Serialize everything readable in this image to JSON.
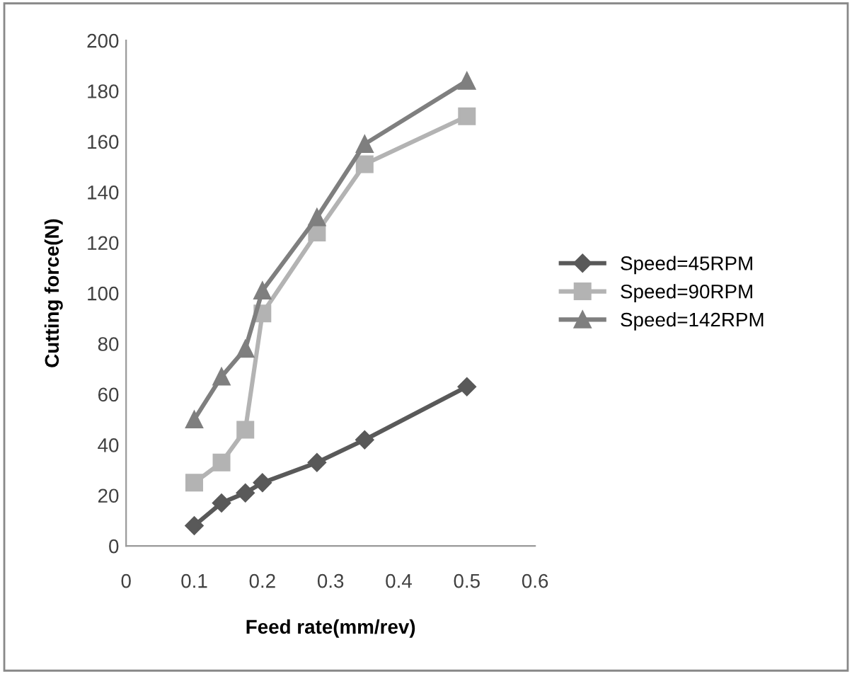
{
  "chart_data": {
    "type": "line",
    "xlabel": "Feed rate(mm/rev)",
    "ylabel": "Cutting force(N)",
    "x": [
      0.1,
      0.14,
      0.175,
      0.2,
      0.28,
      0.35,
      0.5
    ],
    "series": [
      {
        "name": "Speed=45RPM",
        "color": "#595959",
        "marker": "diamond",
        "values": [
          8,
          17,
          21,
          25,
          33,
          42,
          63
        ]
      },
      {
        "name": "Speed=90RPM",
        "color": "#b3b3b3",
        "marker": "square",
        "values": [
          25,
          33,
          46,
          92,
          124,
          151,
          170
        ]
      },
      {
        "name": "Speed=142RPM",
        "color": "#7f7f7f",
        "marker": "triangle",
        "values": [
          50,
          67,
          78,
          101,
          130,
          159,
          184
        ]
      }
    ],
    "xlim": [
      0,
      0.6
    ],
    "xticks": [
      0,
      0.1,
      0.2,
      0.3,
      0.4,
      0.5,
      0.6
    ],
    "ylim": [
      0,
      200
    ],
    "yticks": [
      0,
      20,
      40,
      60,
      80,
      100,
      120,
      140,
      160,
      180,
      200
    ],
    "grid": false,
    "legend": "right",
    "line_style": "solid"
  }
}
